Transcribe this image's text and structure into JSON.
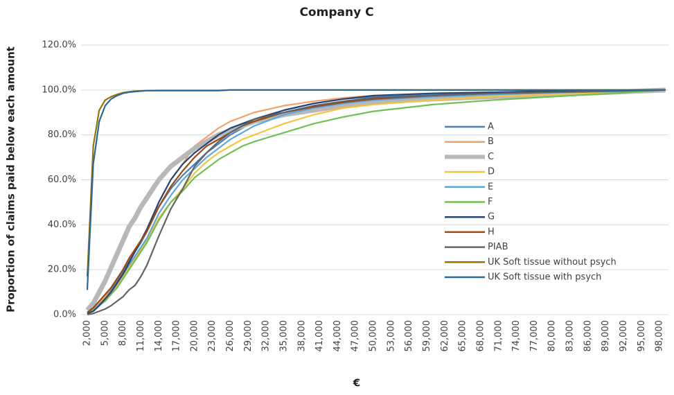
{
  "chart_data": {
    "type": "line",
    "title": "Company C",
    "x_label": "€",
    "y_label": "Proportion of claims paid below each amount",
    "x": [
      2000,
      3000,
      4000,
      5000,
      6000,
      7000,
      8000,
      9000,
      10000,
      11000,
      12000,
      14000,
      16000,
      18000,
      20000,
      22000,
      24000,
      26000,
      28000,
      30000,
      35000,
      40000,
      45000,
      50000,
      60000,
      70000,
      80000,
      90000,
      99000
    ],
    "xlim": [
      2000,
      99500
    ],
    "xticks": [
      {
        "value": 2000,
        "label": "2,000"
      },
      {
        "value": 5000,
        "label": "5,000"
      },
      {
        "value": 8000,
        "label": "8,000"
      },
      {
        "value": 11000,
        "label": "11,000"
      },
      {
        "value": 14000,
        "label": "14,000"
      },
      {
        "value": 17000,
        "label": "17,000"
      },
      {
        "value": 20000,
        "label": "20,000"
      },
      {
        "value": 23000,
        "label": "23,000"
      },
      {
        "value": 26000,
        "label": "26,000"
      },
      {
        "value": 29000,
        "label": "29,000"
      },
      {
        "value": 32000,
        "label": "32,000"
      },
      {
        "value": 35000,
        "label": "35,000"
      },
      {
        "value": 38000,
        "label": "38,000"
      },
      {
        "value": 41000,
        "label": "41,000"
      },
      {
        "value": 44000,
        "label": "44,000"
      },
      {
        "value": 47000,
        "label": "47,000"
      },
      {
        "value": 50000,
        "label": "50,000"
      },
      {
        "value": 53000,
        "label": "53,000"
      },
      {
        "value": 56000,
        "label": "56,000"
      },
      {
        "value": 59000,
        "label": "59,000"
      },
      {
        "value": 62000,
        "label": "62,000"
      },
      {
        "value": 65000,
        "label": "65,000"
      },
      {
        "value": 68000,
        "label": "68,000"
      },
      {
        "value": 71000,
        "label": "71,000"
      },
      {
        "value": 74000,
        "label": "74,000"
      },
      {
        "value": 77000,
        "label": "77,000"
      },
      {
        "value": 80000,
        "label": "80,000"
      },
      {
        "value": 83000,
        "label": "83,000"
      },
      {
        "value": 86000,
        "label": "86,000"
      },
      {
        "value": 89000,
        "label": "89,000"
      },
      {
        "value": 92000,
        "label": "92,000"
      },
      {
        "value": 95000,
        "label": "95,000"
      },
      {
        "value": 98000,
        "label": "98,000"
      }
    ],
    "ylim": [
      0,
      120
    ],
    "yticks": [
      {
        "value": 0,
        "label": "0.0%"
      },
      {
        "value": 20,
        "label": "20.0%"
      },
      {
        "value": 40,
        "label": "40.0%"
      },
      {
        "value": 60,
        "label": "60.0%"
      },
      {
        "value": 80,
        "label": "80.0%"
      },
      {
        "value": 100,
        "label": "100.0%"
      },
      {
        "value": 120,
        "label": "120.0%"
      }
    ],
    "grid": true,
    "series": [
      {
        "name": "A",
        "color": "#4a7ebb",
        "values": [
          0.5,
          2,
          5,
          8,
          11,
          15,
          19,
          24,
          28,
          32,
          37,
          48,
          56,
          62,
          67,
          72,
          76,
          80,
          83,
          86,
          91,
          94,
          96,
          97,
          98,
          98.5,
          99,
          99.5,
          100
        ]
      },
      {
        "name": "B",
        "color": "#f4a06a",
        "values": [
          0.5,
          2,
          5,
          8,
          12,
          16,
          20,
          25,
          29,
          33,
          38,
          50,
          60,
          67,
          75,
          79,
          83,
          86,
          88,
          90,
          93,
          95,
          96.5,
          97.5,
          98.5,
          99,
          99.5,
          99.7,
          100
        ]
      },
      {
        "name": "C",
        "color": "#b8b8b8",
        "values": [
          2,
          5,
          10,
          15,
          21,
          27,
          33,
          39,
          43,
          48,
          52,
          60,
          66,
          70,
          74,
          77,
          80,
          82,
          84,
          86,
          89,
          91,
          93,
          94.5,
          96,
          97,
          98,
          99,
          100
        ]
      },
      {
        "name": "D",
        "color": "#f5c43a",
        "values": [
          0.5,
          2,
          4,
          7,
          10,
          13,
          17,
          21,
          25,
          29,
          33,
          43,
          50,
          56,
          63,
          68,
          72,
          75,
          78,
          80,
          85,
          89,
          92,
          93.5,
          95.5,
          97,
          98,
          99,
          100
        ]
      },
      {
        "name": "E",
        "color": "#5ba9dc",
        "values": [
          0.5,
          2,
          4.5,
          7,
          10,
          14,
          18,
          22,
          26,
          30,
          34,
          45,
          53,
          60,
          65,
          70,
          74,
          78,
          81,
          84,
          89,
          92,
          94,
          95.5,
          97,
          98,
          98.8,
          99.3,
          100
        ]
      },
      {
        "name": "F",
        "color": "#70bf54",
        "values": [
          0.5,
          2,
          4,
          6,
          9,
          12,
          16,
          20,
          24,
          28,
          32,
          42,
          50,
          55,
          61,
          65,
          69,
          72,
          75,
          77,
          81,
          85,
          88,
          90.5,
          93.5,
          95.5,
          97,
          98.5,
          100
        ]
      },
      {
        "name": "G",
        "color": "#264478",
        "values": [
          0.5,
          1.5,
          4,
          7,
          10,
          14,
          18,
          23,
          28,
          33,
          38,
          50,
          60,
          67,
          72,
          76,
          80,
          83,
          85,
          87,
          91,
          94,
          96,
          97.5,
          98.5,
          99,
          99.5,
          99.7,
          100
        ]
      },
      {
        "name": "H",
        "color": "#9e480e",
        "values": [
          1,
          3,
          6,
          9,
          12,
          16,
          20,
          25,
          29,
          33,
          37,
          48,
          57,
          64,
          70,
          75,
          78,
          81,
          84,
          86,
          90,
          92.5,
          94.5,
          96,
          97.5,
          98.5,
          99,
          99.5,
          100
        ]
      },
      {
        "name": "PIAB",
        "color": "#636363",
        "values": [
          0,
          0.5,
          1.5,
          2.5,
          4,
          6,
          8,
          11,
          13,
          17,
          22,
          35,
          47,
          56,
          66,
          72,
          77,
          81,
          84,
          87,
          90,
          93,
          95,
          96.5,
          97.5,
          98.5,
          99,
          99.5,
          100
        ]
      },
      {
        "name": "UK Soft tissue without psych",
        "color": "#997300",
        "values": [
          17,
          75,
          91,
          95.5,
          97,
          98,
          98.8,
          99.2,
          99.5,
          99.6,
          99.7,
          99.8,
          99.8,
          99.8,
          99.8,
          99.8,
          99.8,
          100,
          100,
          100,
          100,
          100,
          100,
          100,
          100,
          100,
          100,
          100,
          100
        ]
      },
      {
        "name": "UK Soft tissue with psych",
        "color": "#26699e",
        "values": [
          11,
          67,
          86,
          93,
          96,
          97.5,
          98.5,
          99,
          99.3,
          99.5,
          99.7,
          99.7,
          99.7,
          99.7,
          99.7,
          99.7,
          99.7,
          100,
          100,
          100,
          100,
          100,
          100,
          100,
          100,
          100,
          100,
          100,
          100
        ]
      }
    ]
  }
}
